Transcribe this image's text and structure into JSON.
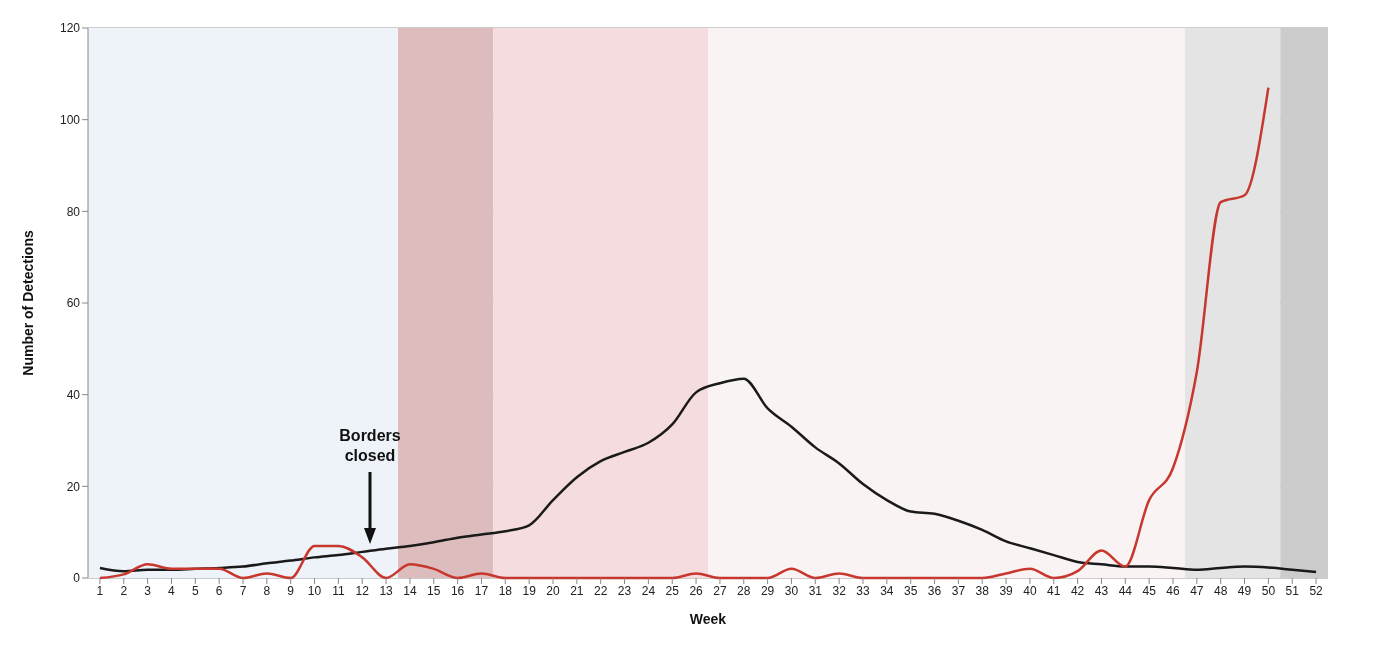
{
  "chart_data": {
    "type": "line",
    "xlabel": "Week",
    "ylabel": "Number of Detections",
    "x": [
      1,
      2,
      3,
      4,
      5,
      6,
      7,
      8,
      9,
      10,
      11,
      12,
      13,
      14,
      15,
      16,
      17,
      18,
      19,
      20,
      21,
      22,
      23,
      24,
      25,
      26,
      27,
      28,
      29,
      30,
      31,
      32,
      33,
      34,
      35,
      36,
      37,
      38,
      39,
      40,
      41,
      42,
      43,
      44,
      45,
      46,
      47,
      48,
      49,
      50,
      51,
      52
    ],
    "xlim": [
      0.5,
      52.5
    ],
    "xticks": [
      1,
      2,
      3,
      4,
      5,
      6,
      7,
      8,
      9,
      10,
      11,
      12,
      13,
      14,
      15,
      16,
      17,
      18,
      19,
      20,
      21,
      22,
      23,
      24,
      25,
      26,
      27,
      28,
      29,
      30,
      31,
      32,
      33,
      34,
      35,
      36,
      37,
      38,
      39,
      40,
      41,
      42,
      43,
      44,
      45,
      46,
      47,
      48,
      49,
      50,
      51,
      52
    ],
    "ylim": [
      0,
      120
    ],
    "yticks": [
      0,
      20,
      40,
      60,
      80,
      100,
      120
    ],
    "grid": "y",
    "marker": "none",
    "line_style": "solid",
    "series": [
      {
        "color": "#1a1a1a",
        "values": [
          2.2,
          1.5,
          1.8,
          1.8,
          2,
          2.2,
          2.5,
          3.2,
          3.8,
          4.5,
          5,
          5.7,
          6.4,
          7,
          7.8,
          8.8,
          9.5,
          10.2,
          11.5,
          17,
          22,
          25.5,
          27.5,
          29.5,
          33.5,
          40.5,
          42.5,
          43.5,
          37,
          33,
          28.5,
          25,
          20.5,
          17,
          14.5,
          14,
          12.5,
          10.5,
          8,
          6.5,
          5,
          3.5,
          3,
          2.5,
          2.5,
          2.2,
          1.8,
          2.2,
          2.5,
          2.3,
          1.8,
          1.3
        ]
      },
      {
        "color": "#c8372d",
        "values": [
          0,
          0.8,
          3,
          2,
          2,
          2,
          0,
          1,
          0,
          7,
          7,
          4.5,
          0,
          3,
          2,
          0,
          1,
          0,
          0,
          0,
          0,
          0,
          0,
          0,
          0,
          1,
          0,
          0,
          0,
          2,
          0,
          1,
          0,
          0,
          0,
          0,
          0,
          0,
          1,
          2,
          0,
          1.5,
          6,
          2.5,
          17,
          24,
          45,
          82,
          83.5,
          107,
          null,
          null
        ]
      }
    ],
    "bands": [
      {
        "axis": "x",
        "from": 0.5,
        "to": 13.5,
        "color": "#eef3fa"
      },
      {
        "axis": "x",
        "from": 13.5,
        "to": 17.5,
        "color": "#dcbcbc"
      },
      {
        "axis": "x",
        "from": 17.5,
        "to": 26.5,
        "color": "#f5dcdf"
      },
      {
        "axis": "x",
        "from": 26.5,
        "to": 46.5,
        "color": "#faf3f3"
      },
      {
        "axis": "x",
        "from": 46.5,
        "to": 50.5,
        "color": "#e4e4e4"
      },
      {
        "axis": "x",
        "from": 50.5,
        "to": 52.5,
        "color": "#cccccc"
      }
    ],
    "annotations": [
      "Borders closed"
    ]
  }
}
